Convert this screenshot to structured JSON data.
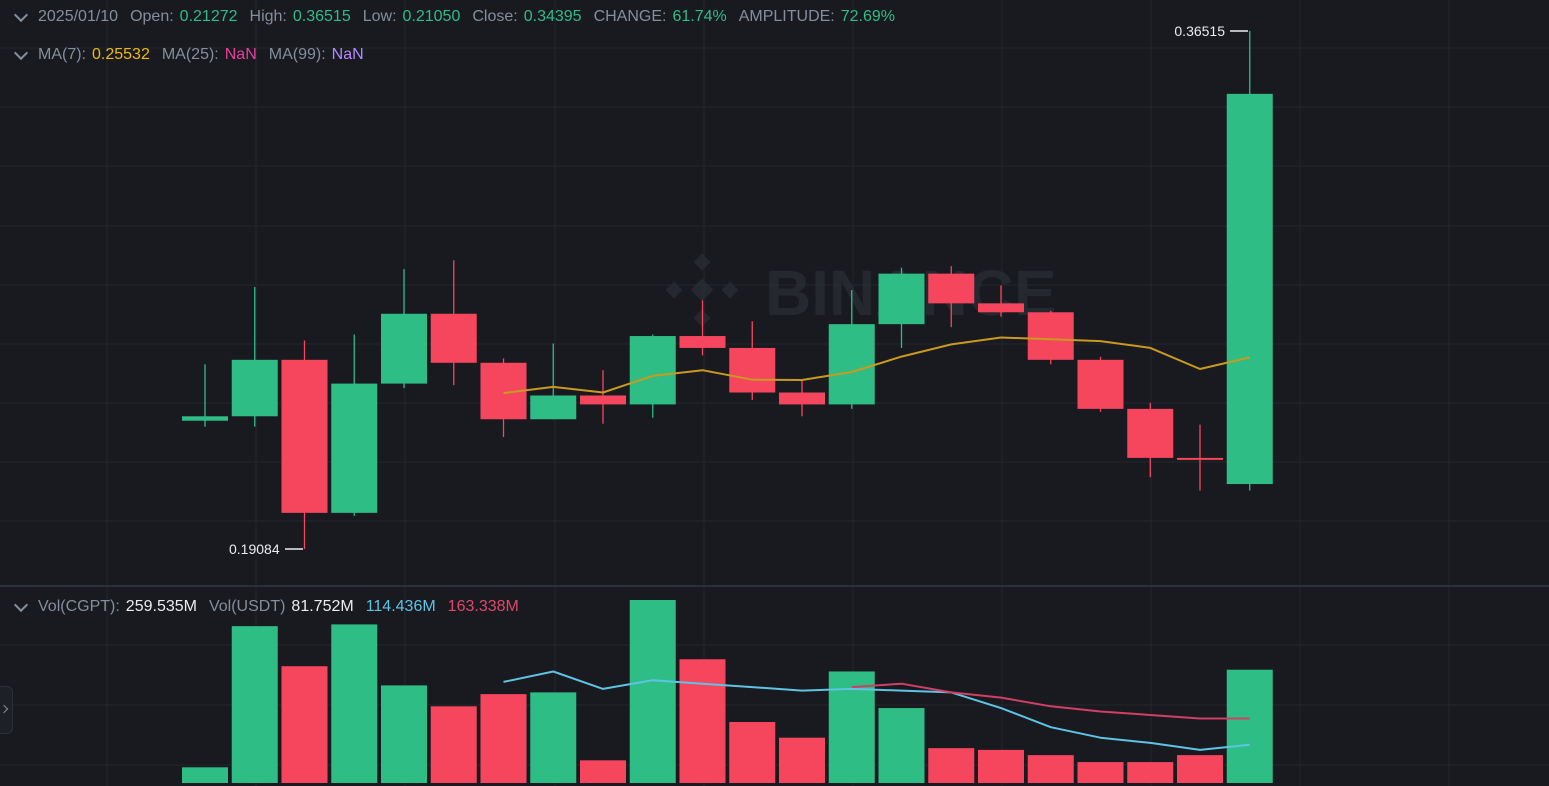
{
  "legend": {
    "date": "2025/01/10",
    "open_label": "Open:",
    "open": "0.21272",
    "high_label": "High:",
    "high": "0.36515",
    "low_label": "Low:",
    "low": "0.21050",
    "close_label": "Close:",
    "close": "0.34395",
    "change_label": "CHANGE:",
    "change": "61.74%",
    "amplitude_label": "AMPLITUDE:",
    "amplitude": "72.69%"
  },
  "ma_legend": {
    "ma7_label": "MA(7):",
    "ma7": "0.25532",
    "ma25_label": "MA(25):",
    "ma25": "NaN",
    "ma99_label": "MA(99):",
    "ma99": "NaN"
  },
  "vol_legend": {
    "vol_base_label": "Vol(CGPT):",
    "vol_base": "259.535M",
    "vol_quote_label": "Vol(USDT)",
    "vol_quote": "81.752M",
    "ma_short": "114.436M",
    "ma_long": "163.338M"
  },
  "watermark": "BINANCE",
  "colors": {
    "up": "#2ebd85",
    "down": "#f6465d",
    "ma7": "#c99a1e",
    "vol_ma_short": "#5fc3e4",
    "vol_ma_long": "#d23f64",
    "grid": "#23262d",
    "background": "#181a20"
  },
  "chart_data": {
    "type": "candlestick",
    "candles": [
      {
        "o": 0.234,
        "h": 0.253,
        "l": 0.232,
        "c": 0.2355
      },
      {
        "o": 0.2355,
        "h": 0.279,
        "l": 0.232,
        "c": 0.2545
      },
      {
        "o": 0.2545,
        "h": 0.261,
        "l": 0.1908,
        "c": 0.203
      },
      {
        "o": 0.203,
        "h": 0.263,
        "l": 0.202,
        "c": 0.2465
      },
      {
        "o": 0.2465,
        "h": 0.285,
        "l": 0.245,
        "c": 0.27
      },
      {
        "o": 0.27,
        "h": 0.288,
        "l": 0.246,
        "c": 0.2535
      },
      {
        "o": 0.2535,
        "h": 0.255,
        "l": 0.2285,
        "c": 0.2345
      },
      {
        "o": 0.2345,
        "h": 0.26,
        "l": 0.2345,
        "c": 0.2425
      },
      {
        "o": 0.2425,
        "h": 0.251,
        "l": 0.233,
        "c": 0.2395
      },
      {
        "o": 0.2395,
        "h": 0.263,
        "l": 0.235,
        "c": 0.2625
      },
      {
        "o": 0.2625,
        "h": 0.2745,
        "l": 0.256,
        "c": 0.2585
      },
      {
        "o": 0.2585,
        "h": 0.2675,
        "l": 0.241,
        "c": 0.2435
      },
      {
        "o": 0.2435,
        "h": 0.248,
        "l": 0.2355,
        "c": 0.2395
      },
      {
        "o": 0.2395,
        "h": 0.278,
        "l": 0.238,
        "c": 0.2665
      },
      {
        "o": 0.2665,
        "h": 0.2855,
        "l": 0.2585,
        "c": 0.2835
      },
      {
        "o": 0.2835,
        "h": 0.286,
        "l": 0.2655,
        "c": 0.2735
      },
      {
        "o": 0.2735,
        "h": 0.2795,
        "l": 0.269,
        "c": 0.2705
      },
      {
        "o": 0.2705,
        "h": 0.271,
        "l": 0.253,
        "c": 0.2545
      },
      {
        "o": 0.2545,
        "h": 0.2555,
        "l": 0.237,
        "c": 0.238
      },
      {
        "o": 0.238,
        "h": 0.24,
        "l": 0.215,
        "c": 0.2215
      },
      {
        "o": 0.2215,
        "h": 0.2327,
        "l": 0.2105,
        "c": 0.2209
      },
      {
        "o": 0.2127,
        "h": 0.3652,
        "l": 0.2105,
        "c": 0.344
      }
    ],
    "ma7": [
      null,
      null,
      null,
      null,
      null,
      null,
      0.2433,
      0.2454,
      0.2435,
      0.2491,
      0.251,
      0.2478,
      0.2477,
      0.2504,
      0.2556,
      0.2597,
      0.262,
      0.2614,
      0.2608,
      0.2585,
      0.2514,
      0.2553
    ],
    "volume": [
      9,
      90,
      67,
      91,
      56,
      44,
      51,
      52,
      13,
      105,
      71,
      35,
      26,
      64,
      43,
      20,
      19,
      16,
      12,
      12,
      16,
      65
    ],
    "vol_ma_short": [
      null,
      null,
      null,
      null,
      null,
      null,
      58,
      64,
      54,
      59,
      57,
      55,
      53,
      54,
      53,
      52,
      43,
      32,
      26,
      23,
      19,
      22
    ],
    "vol_ma_long": [
      null,
      null,
      null,
      null,
      null,
      null,
      null,
      null,
      null,
      null,
      null,
      null,
      null,
      55,
      57,
      52,
      49,
      44,
      41,
      39,
      37,
      37
    ],
    "price_ylim": [
      0.179,
      0.37
    ],
    "volume_ylim": [
      0,
      105
    ],
    "annotations": {
      "high_label": "0.36515",
      "low_label": "0.19084"
    },
    "grid": true
  }
}
